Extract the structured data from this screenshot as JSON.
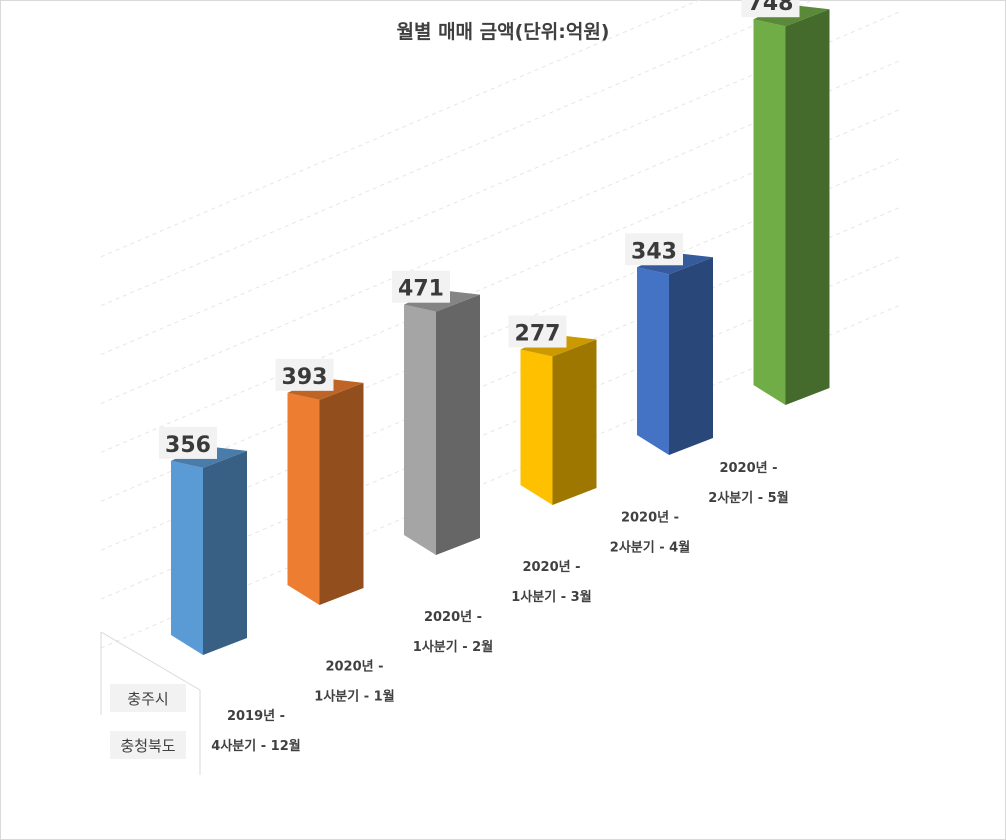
{
  "chart_data": {
    "type": "bar",
    "title": "월별 매매 금액(단위:억원)",
    "xlabel": "",
    "ylabel": "",
    "categories": [
      [
        "2019년 -",
        "4사분기 - 12월"
      ],
      [
        "2020년 -",
        "1사분기 - 1월"
      ],
      [
        "2020년 -",
        "1사분기 - 2월"
      ],
      [
        "2020년 -",
        "1사분기 - 3월"
      ],
      [
        "2020년 -",
        "2사분기 - 4월"
      ],
      [
        "2020년 -",
        "2사분기 - 5월"
      ]
    ],
    "series_labels": [
      "충주시",
      "충청북도"
    ],
    "values": [
      356,
      393,
      471,
      277,
      343,
      748
    ],
    "colors": [
      "#5b9bd5",
      "#ed7d31",
      "#a5a5a5",
      "#ffc000",
      "#4472c4",
      "#70ad47"
    ],
    "ylim": [
      0,
      800
    ],
    "grid": true,
    "legend": "none"
  }
}
